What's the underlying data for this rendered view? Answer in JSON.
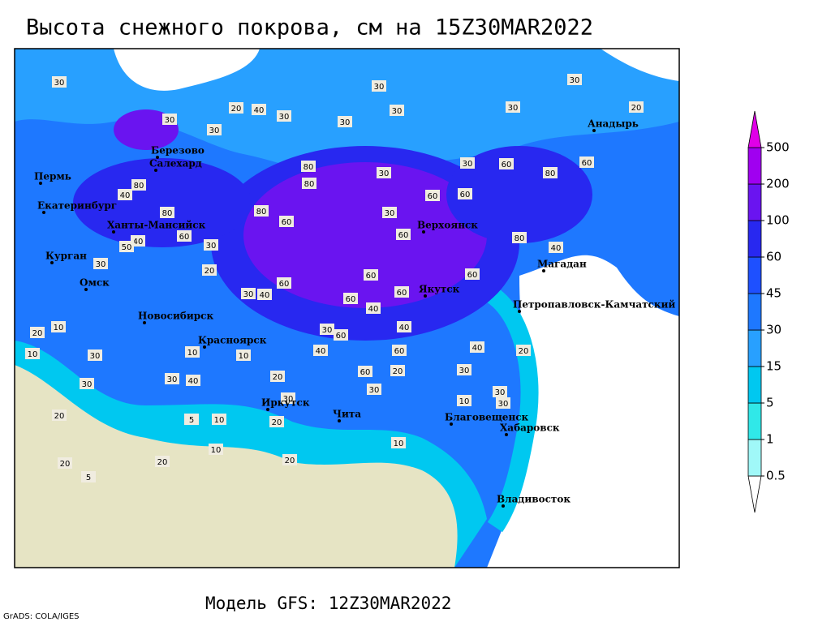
{
  "title": "Высота снежного покрова, см на 15Z30MAR2022",
  "footer": "Модель GFS: 12Z30MAR2022",
  "credit": "GrADS: COLA/IGES",
  "colorbar": {
    "levels": [
      0.5,
      1,
      5,
      15,
      30,
      45,
      60,
      100,
      200,
      500
    ],
    "colors": [
      "#ffffff",
      "#a0f8f8",
      "#30e8e8",
      "#00c8f0",
      "#28a0ff",
      "#1e78ff",
      "#1e50ff",
      "#2828f0",
      "#6a14f0",
      "#a000f0",
      "#e000e8"
    ]
  },
  "cities": [
    "Пермь",
    "Екатеринбург",
    "Березово",
    "Салехард",
    "Ханты-Мансийск",
    "Курган",
    "Омск",
    "Новосибирск",
    "Красноярск",
    "Иркутск",
    "Чита",
    "Благовещенск",
    "Хабаровск",
    "Владивосток",
    "Якутск",
    "Верхоянск",
    "Магадан",
    "Петропавловск-Камчатский",
    "Анадырь"
  ],
  "contour_labels": [
    30,
    30,
    30,
    30,
    30,
    40,
    20,
    30,
    30,
    20,
    30,
    30,
    80,
    80,
    30,
    30,
    60,
    80,
    60,
    60,
    60,
    30,
    60,
    80,
    40,
    60,
    80,
    80,
    60,
    40,
    80,
    30,
    40,
    50,
    20,
    30,
    60,
    30,
    40,
    60,
    60,
    60,
    40,
    60,
    40,
    60,
    30,
    40,
    60,
    60,
    20,
    30,
    40,
    20,
    20,
    10,
    10,
    10,
    10,
    20,
    30,
    30,
    40,
    30,
    30,
    30,
    10,
    30,
    20,
    10,
    5,
    20,
    20,
    5,
    20,
    10,
    20,
    10,
    30
  ]
}
